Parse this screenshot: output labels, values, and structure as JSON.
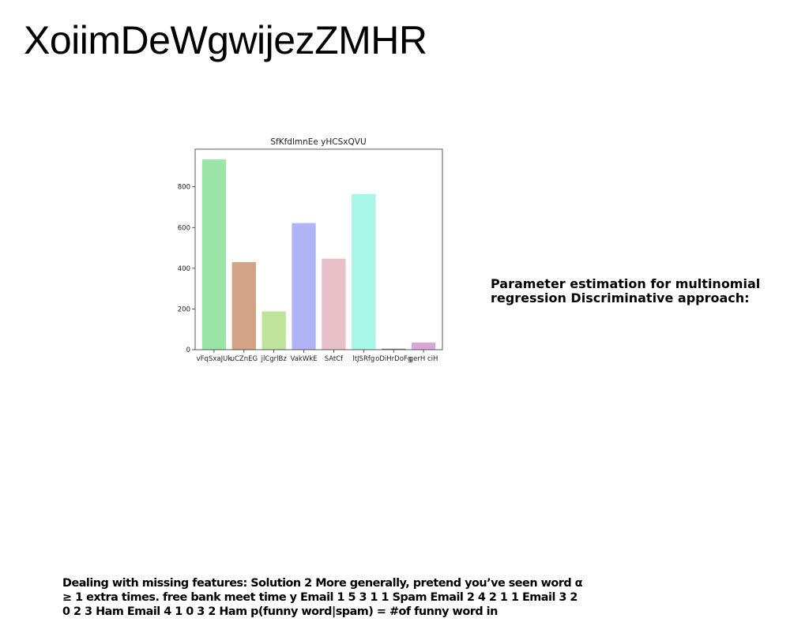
{
  "page": {
    "title": "XoiimDeWgwijezZMHR",
    "side_note": "Parameter estimation for multinomial regression Discriminative approach:",
    "bottom_note": "Dealing with missing features: Solution 2 More generally, pretend you’ve seen word α ≥ 1 extra times. free bank meet time y Email 1 5 3 1 1 Spam Email 2 4 2 1 1 Email 3 2 0 2 3 Ham Email 4 1 0 3 2 Ham p(funny word|spam) = #of funny word in"
  },
  "chart_data": {
    "type": "bar",
    "title": "SfKfdlmnEe yHCSxQVU",
    "xlabel": "",
    "ylabel": "",
    "categories": [
      "vFqSxaJUk",
      "uCZnEG",
      "jlCgrlBz",
      "VakWkE",
      "SAtCf",
      "ltJSRfg",
      "oDiHrDoFg",
      "gerH ciH"
    ],
    "values": [
      935,
      430,
      188,
      622,
      447,
      765,
      5,
      35
    ],
    "colors": [
      "#9be5a8",
      "#d3a386",
      "#bfe39b",
      "#b0b4f6",
      "#e8c0c8",
      "#a7f6e6",
      "#8a8a8a",
      "#d9a8d9"
    ],
    "ylim": [
      0,
      985
    ],
    "yticks": [
      0,
      200,
      400,
      600,
      800
    ],
    "grid": false,
    "legend": "none"
  }
}
